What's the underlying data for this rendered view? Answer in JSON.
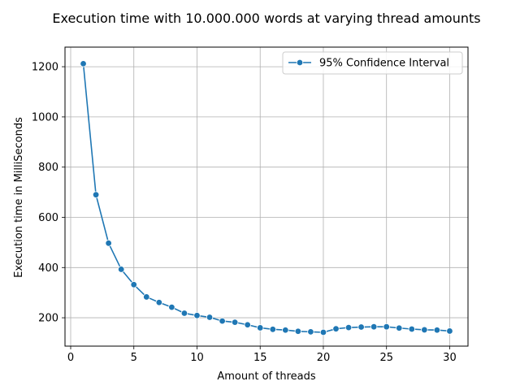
{
  "chart_data": {
    "type": "line",
    "title": "Execution time with 10.000.000 words at varying thread amounts",
    "xlabel": "Amount of threads",
    "ylabel": "Execution time in MilliSeconds",
    "xlim": [
      -0.45,
      31.45
    ],
    "ylim": [
      87,
      1278
    ],
    "xticks": [
      0,
      5,
      10,
      15,
      20,
      25,
      30
    ],
    "yticks": [
      200,
      400,
      600,
      800,
      1000,
      1200
    ],
    "grid": true,
    "legend_position": "top-right",
    "series": [
      {
        "name": "95% Confidence Interval",
        "color": "#1f77b4",
        "x": [
          1,
          2,
          3,
          4,
          5,
          6,
          7,
          8,
          9,
          10,
          11,
          12,
          13,
          14,
          15,
          16,
          17,
          18,
          19,
          20,
          21,
          22,
          23,
          24,
          25,
          26,
          27,
          28,
          29,
          30
        ],
        "y": [
          1212,
          690,
          497,
          393,
          332,
          283,
          261,
          242,
          218,
          209,
          202,
          187,
          182,
          172,
          160,
          154,
          151,
          146,
          144,
          142,
          156,
          161,
          163,
          164,
          164,
          159,
          155,
          152,
          151,
          147
        ]
      }
    ]
  }
}
